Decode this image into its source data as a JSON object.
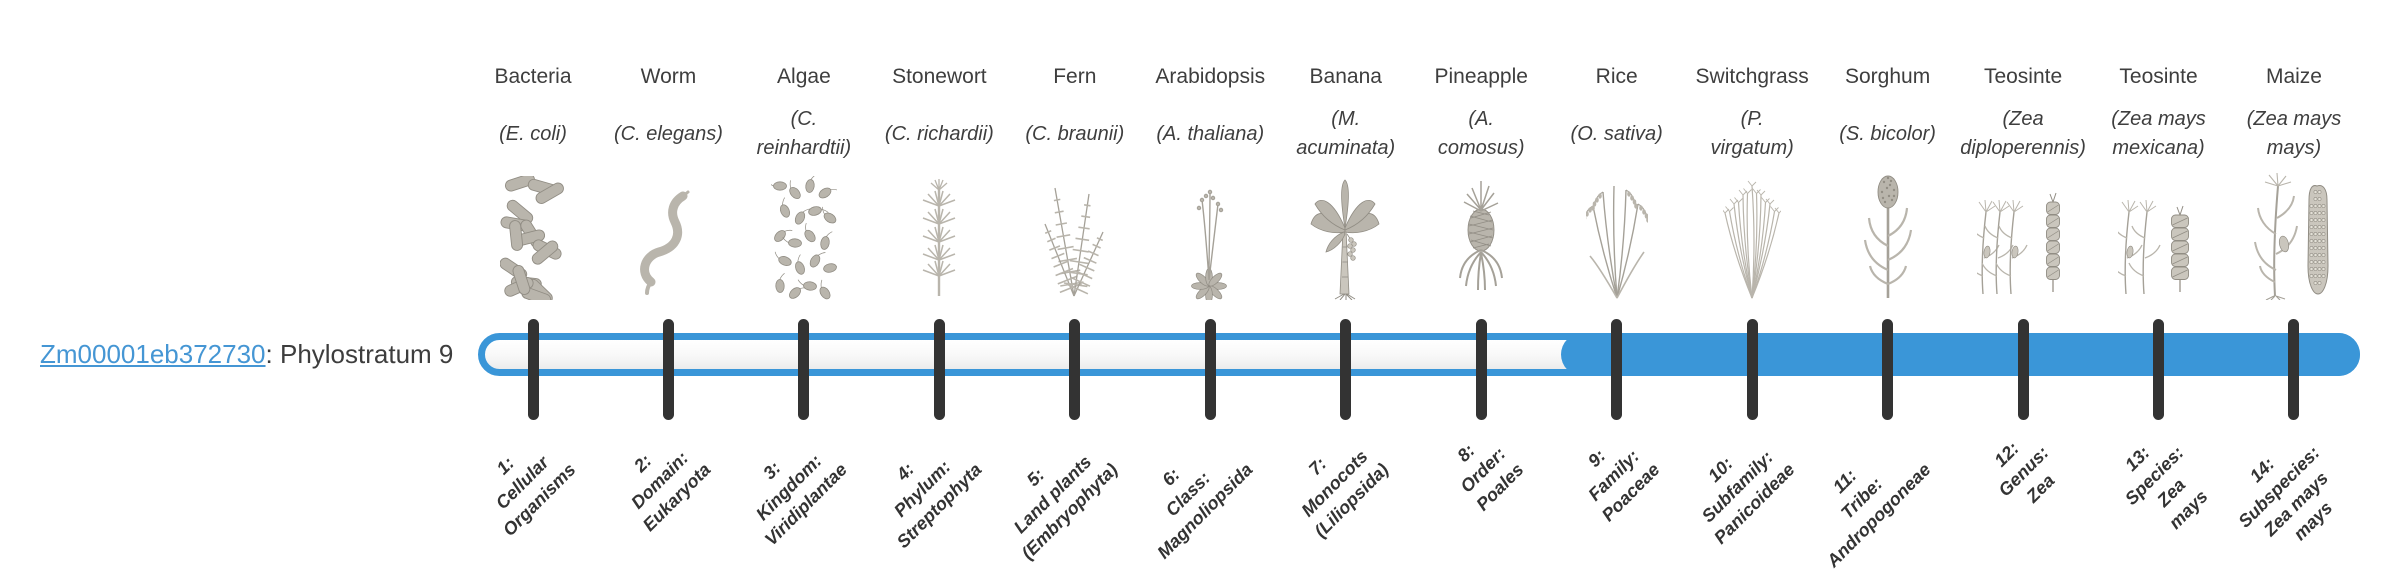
{
  "gene": {
    "id": "Zm00001eb372730",
    "suffix": ": Phylostratum 9",
    "phylostratum": 9
  },
  "colors": {
    "accent_blue": "#3a96d8",
    "link_blue": "#4596d4",
    "tick": "#333333",
    "text": "#3e3e3e"
  },
  "timeline": {
    "filled_from_index": 8,
    "filled_from_label": "9: Family: Poaceae"
  },
  "organisms": [
    {
      "common": "Bacteria",
      "sci_lines": [
        "(E. coli)"
      ],
      "icon": "bacteria-icon",
      "stratum_lines": [
        "1:",
        "Cellular",
        "Organisms"
      ]
    },
    {
      "common": "Worm",
      "sci_lines": [
        "(C. elegans)"
      ],
      "icon": "worm-icon",
      "stratum_lines": [
        "2:",
        "Domain:",
        "Eukaryota"
      ]
    },
    {
      "common": "Algae",
      "sci_lines": [
        "(C.",
        "reinhardtii)"
      ],
      "icon": "algae-icon",
      "stratum_lines": [
        "3:",
        "Kingdom:",
        "Viridiplantae"
      ]
    },
    {
      "common": "Stonewort",
      "sci_lines": [
        "(C. richardii)"
      ],
      "icon": "stonewort-icon",
      "stratum_lines": [
        "4:",
        "Phylum:",
        "Streptophyta"
      ]
    },
    {
      "common": "Fern",
      "sci_lines": [
        "(C. braunii)"
      ],
      "icon": "fern-icon",
      "stratum_lines": [
        "5:",
        "Land plants",
        "(Embryophyta)"
      ]
    },
    {
      "common": "Arabidopsis",
      "sci_lines": [
        "(A. thaliana)"
      ],
      "icon": "arabidopsis-icon",
      "stratum_lines": [
        "6:",
        "Class:",
        "Magnoliopsida"
      ]
    },
    {
      "common": "Banana",
      "sci_lines": [
        "(M.",
        "acuminata)"
      ],
      "icon": "banana-icon",
      "stratum_lines": [
        "7:",
        "Monocots",
        "(Liliopsida)"
      ]
    },
    {
      "common": "Pineapple",
      "sci_lines": [
        "(A.",
        "comosus)"
      ],
      "icon": "pineapple-icon",
      "stratum_lines": [
        "8:",
        "Order:",
        "Poales"
      ]
    },
    {
      "common": "Rice",
      "sci_lines": [
        "(O. sativa)"
      ],
      "icon": "rice-icon",
      "stratum_lines": [
        "9:",
        "Family:",
        "Poaceae"
      ]
    },
    {
      "common": "Switchgrass",
      "sci_lines": [
        "(P.",
        "virgatum)"
      ],
      "icon": "switchgrass-icon",
      "stratum_lines": [
        "10:",
        "Subfamily:",
        "Panicoideae"
      ]
    },
    {
      "common": "Sorghum",
      "sci_lines": [
        "(S. bicolor)"
      ],
      "icon": "sorghum-icon",
      "stratum_lines": [
        "11:",
        "Tribe:",
        "Andropogoneae"
      ]
    },
    {
      "common": "Teosinte",
      "sci_lines": [
        "(Zea",
        "diploperennis)"
      ],
      "icon": "teosinte-diploperennis-icon",
      "stratum_lines": [
        "12:",
        "Genus:",
        "Zea"
      ]
    },
    {
      "common": "Teosinte",
      "sci_lines": [
        "(Zea mays",
        "mexicana)"
      ],
      "icon": "teosinte-mexicana-icon",
      "stratum_lines": [
        "13:",
        "Species:",
        "Zea",
        "mays"
      ]
    },
    {
      "common": "Maize",
      "sci_lines": [
        "(Zea mays",
        "mays)"
      ],
      "icon": "maize-icon",
      "stratum_lines": [
        "14:",
        "Subspecies:",
        "Zea mays",
        "mays"
      ]
    }
  ]
}
